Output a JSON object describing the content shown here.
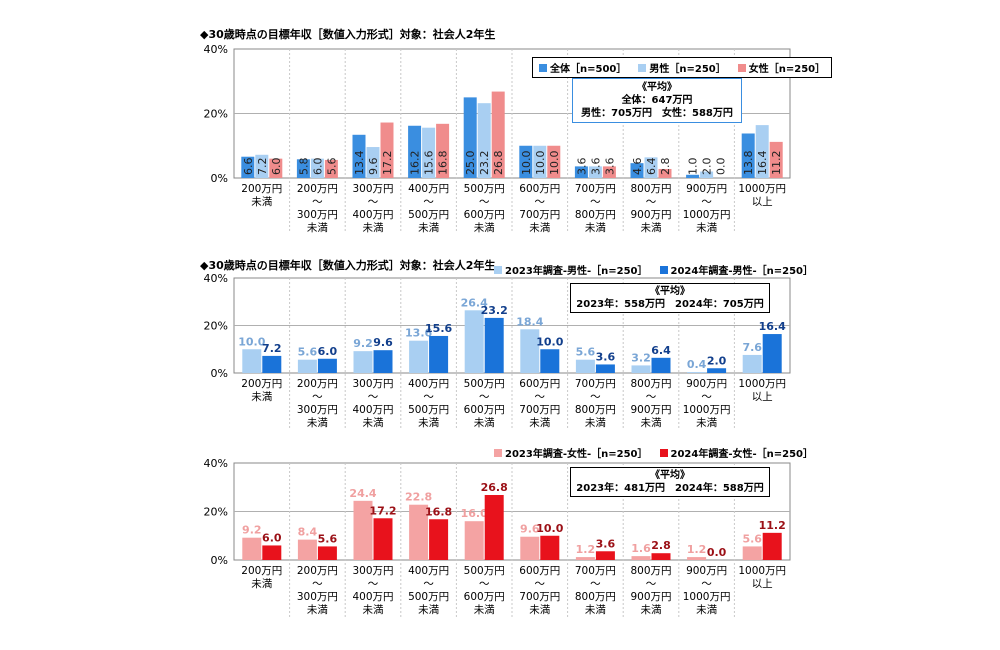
{
  "colors": {
    "all": "#3a8ee0",
    "male": "#a9cff2",
    "female": "#f08c8c",
    "male2023": "#a9cff2",
    "male2024": "#1a73d9",
    "female2023": "#f4a3a3",
    "female2024": "#e8121c",
    "grid": "#b0b0b0"
  },
  "chart_data": [
    {
      "type": "bar",
      "title": "◆30歳時点の目標年収［数値入力形式］対象：社会人2年生",
      "categories": [
        "200万円\n未満",
        "200万円\n～\n300万円\n未満",
        "300万円\n～\n400万円\n未満",
        "400万円\n～\n500万円\n未満",
        "500万円\n～\n600万円\n未満",
        "600万円\n～\n700万円\n未満",
        "700万円\n～\n800万円\n未満",
        "800万円\n～\n900万円\n未満",
        "900万円\n～\n1000万円\n未満",
        "1000万円\n以上"
      ],
      "series": [
        {
          "name": "全体［n=500］",
          "values": [
            6.6,
            5.8,
            13.4,
            16.2,
            25.0,
            10.0,
            3.6,
            4.6,
            1.0,
            13.8
          ]
        },
        {
          "name": "男性［n=250］",
          "values": [
            7.2,
            6.0,
            9.6,
            15.6,
            23.2,
            10.0,
            3.6,
            6.4,
            2.0,
            16.4
          ]
        },
        {
          "name": "女性［n=250］",
          "values": [
            6.0,
            5.6,
            17.2,
            16.8,
            26.8,
            10.0,
            3.6,
            2.8,
            0.0,
            11.2
          ]
        }
      ],
      "yticks": [
        "0%",
        "20%",
        "40%"
      ],
      "ylim": [
        0,
        40
      ],
      "average": {
        "heading": "《平均》",
        "line1": "全体：647万円",
        "line2": "男性：705万円　女性：588万円"
      }
    },
    {
      "type": "bar",
      "title": "◆30歳時点の目標年収［数値入力形式］対象：社会人2年生",
      "categories": [
        "200万円\n未満",
        "200万円\n～\n300万円\n未満",
        "300万円\n～\n400万円\n未満",
        "400万円\n～\n500万円\n未満",
        "500万円\n～\n600万円\n未満",
        "600万円\n～\n700万円\n未満",
        "700万円\n～\n800万円\n未満",
        "800万円\n～\n900万円\n未満",
        "900万円\n～\n1000万円\n未満",
        "1000万円\n以上"
      ],
      "series": [
        {
          "name": "2023年調査-男性-［n=250］",
          "values": [
            10.0,
            5.6,
            9.2,
            13.6,
            26.4,
            18.4,
            5.6,
            3.2,
            0.4,
            7.6
          ]
        },
        {
          "name": "2024年調査-男性-［n=250］",
          "values": [
            7.2,
            6.0,
            9.6,
            15.6,
            23.2,
            10.0,
            3.6,
            6.4,
            2.0,
            16.4
          ]
        }
      ],
      "yticks": [
        "0%",
        "20%",
        "40%"
      ],
      "ylim": [
        0,
        40
      ],
      "average": {
        "heading": "《平均》",
        "line1": "2023年：558万円　2024年：705万円"
      }
    },
    {
      "type": "bar",
      "title": "",
      "categories": [
        "200万円\n未満",
        "200万円\n～\n300万円\n未満",
        "300万円\n～\n400万円\n未満",
        "400万円\n～\n500万円\n未満",
        "500万円\n～\n600万円\n未満",
        "600万円\n～\n700万円\n未満",
        "700万円\n～\n800万円\n未満",
        "800万円\n～\n900万円\n未満",
        "900万円\n～\n1000万円\n未満",
        "1000万円\n以上"
      ],
      "series": [
        {
          "name": "2023年調査-女性-［n=250］",
          "values": [
            9.2,
            8.4,
            24.4,
            22.8,
            16.0,
            9.6,
            1.2,
            1.6,
            1.2,
            5.6
          ]
        },
        {
          "name": "2024年調査-女性-［n=250］",
          "values": [
            6.0,
            5.6,
            17.2,
            16.8,
            26.8,
            10.0,
            3.6,
            2.8,
            0.0,
            11.2
          ]
        }
      ],
      "yticks": [
        "0%",
        "20%",
        "40%"
      ],
      "ylim": [
        0,
        40
      ],
      "average": {
        "heading": "《平均》",
        "line1": "2023年：481万円　2024年：588万円"
      }
    }
  ]
}
